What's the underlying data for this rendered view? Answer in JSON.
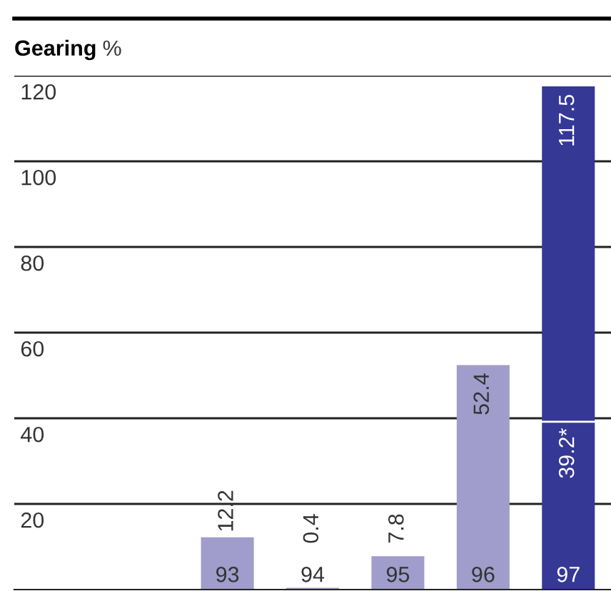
{
  "chart_data": {
    "type": "bar",
    "title": "Gearing",
    "ylabel": "%",
    "categories": [
      null,
      null,
      "93",
      "94",
      "95",
      "96",
      "97"
    ],
    "values": [
      null,
      null,
      12.2,
      0.4,
      7.8,
      52.4,
      117.5
    ],
    "colors": [
      "#a09ccb",
      "#a09ccb",
      "#a09ccb",
      "#a09ccb",
      "#a09ccb",
      "#a09ccb",
      "#363896"
    ],
    "data_labels": true,
    "ref_lines": [
      {
        "axis": "y",
        "value": 39.2,
        "label": "39.2*",
        "color": "#ffffff"
      }
    ],
    "ylim": [
      0,
      120
    ],
    "yticks": [
      20,
      40,
      60,
      80,
      100,
      120
    ],
    "grid": "y",
    "legend": false
  }
}
